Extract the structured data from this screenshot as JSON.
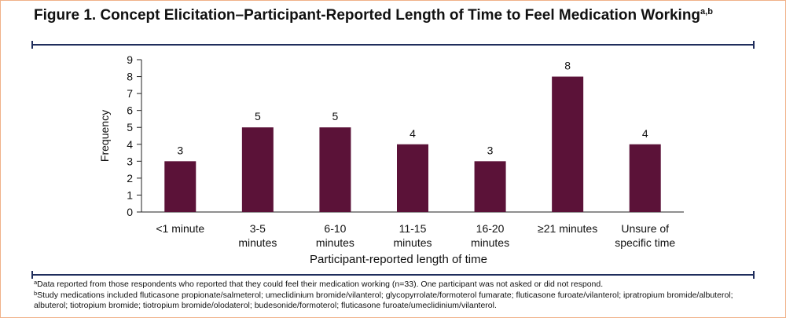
{
  "figure": {
    "title": "Figure 1. Concept Elicitation–Participant-Reported Length of Time to Feel Medication Working",
    "title_superscript": "a,b"
  },
  "chart_data": {
    "type": "bar",
    "title": "",
    "xlabel": "Participant-reported length of time",
    "ylabel": "Frequency",
    "ylim": [
      0,
      9
    ],
    "yticks": [
      0,
      1,
      2,
      3,
      4,
      5,
      6,
      7,
      8,
      9
    ],
    "grid": false,
    "legend": "none",
    "bar_color": "#5b1238",
    "categories": [
      [
        "<1 minute"
      ],
      [
        "3-5",
        "minutes"
      ],
      [
        "6-10",
        "minutes"
      ],
      [
        "11-15",
        "minutes"
      ],
      [
        "16-20",
        "minutes"
      ],
      [
        "≥21 minutes"
      ],
      [
        "Unsure of",
        "specific time"
      ]
    ],
    "values": [
      3,
      5,
      5,
      4,
      3,
      8,
      4
    ]
  },
  "footnotes": [
    {
      "marker": "a",
      "text": "Data reported from those respondents who reported that they could feel their medication working (n=33). One participant was not asked or did not respond."
    },
    {
      "marker": "b",
      "text": "Study medications included fluticasone propionate/salmeterol; umeclidinium bromide/vilanterol; glycopyrrolate/formoterol fumarate; fluticasone furoate/vilanterol; ipratropium bromide/albuterol; albuterol; tiotropium bromide; tiotropium bromide/olodaterol; budesonide/formoterol; fluticasone furoate/umeclidinium/vilanterol."
    }
  ],
  "colors": {
    "rule": "#1f2d5c",
    "frame": "#f0b189",
    "bar": "#5b1238"
  }
}
